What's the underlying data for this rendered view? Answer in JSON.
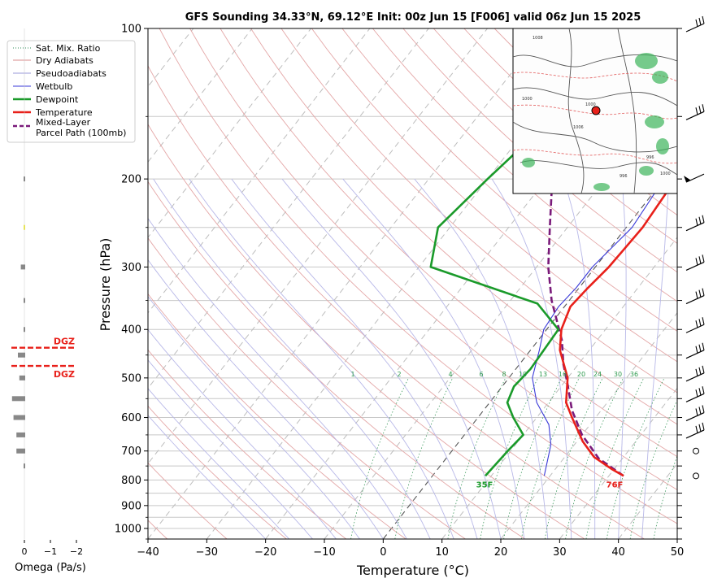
{
  "chart_data": {
    "type": "line",
    "title": "GFS Sounding 34.33°N, 69.12°E Init: 00z Jun 15 [F006] valid 06z Jun 15 2025",
    "xlabel": "Temperature (°C)",
    "ylabel": "Pressure (hPa)",
    "xlim": [
      -40,
      50
    ],
    "ylim": [
      1050,
      100
    ],
    "y_scale": "log",
    "x_ticks": [
      "−40",
      "−30",
      "−20",
      "−10",
      "0",
      "10",
      "20",
      "30",
      "40",
      "50"
    ],
    "y_ticks": [
      "100",
      "200",
      "300",
      "400",
      "500",
      "600",
      "700",
      "800",
      "900",
      "1000"
    ],
    "skew": true,
    "grid": true,
    "legend_position": "outside-left",
    "legend": [
      {
        "label": "Sat. Mix. Ratio",
        "color": "#2e8b57",
        "style": "dotted"
      },
      {
        "label": "Dry Adiabats",
        "color": "#d98c8c",
        "style": "solid"
      },
      {
        "label": "Pseudoadiabats",
        "color": "#9a9ad8",
        "style": "solid"
      },
      {
        "label": "Wetbulb",
        "color": "#3a3ad8",
        "style": "solid"
      },
      {
        "label": "Dewpoint",
        "color": "#1a9a2a",
        "style": "solid-thick"
      },
      {
        "label": "Temperature",
        "color": "#e8201a",
        "style": "solid-thick"
      },
      {
        "label": "Mixed-Layer",
        "label2": "Parcel Path (100mb)",
        "color": "#7a1a7a",
        "style": "dashed-thick"
      }
    ],
    "series": [
      {
        "name": "Temperature",
        "color": "#e8201a",
        "points": [
          [
            32.5,
            785
          ],
          [
            29.5,
            760
          ],
          [
            25,
            720
          ],
          [
            21,
            670
          ],
          [
            16,
            600
          ],
          [
            13,
            560
          ],
          [
            10,
            500
          ],
          [
            5,
            440
          ],
          [
            2.5,
            400
          ],
          [
            1,
            360
          ],
          [
            1.5,
            330
          ],
          [
            2.3,
            300
          ],
          [
            2.8,
            250
          ],
          [
            2,
            200
          ],
          [
            -4.5,
            150
          ],
          [
            -5.5,
            125
          ],
          [
            -5,
            100
          ]
        ]
      },
      {
        "name": "Dewpoint",
        "color": "#1a9a2a",
        "points": [
          [
            9,
            785
          ],
          [
            9.5,
            700
          ],
          [
            10,
            650
          ],
          [
            6,
            600
          ],
          [
            3,
            560
          ],
          [
            2,
            520
          ],
          [
            2.5,
            480
          ],
          [
            2,
            400
          ],
          [
            -5,
            355
          ],
          [
            -28,
            300
          ],
          [
            -32,
            250
          ],
          [
            -30,
            200
          ],
          [
            -27,
            150
          ],
          [
            -21,
            100
          ]
        ]
      },
      {
        "name": "Wetbulb",
        "color": "#3a3ad8",
        "points": [
          [
            19,
            785
          ],
          [
            16,
            680
          ],
          [
            13,
            620
          ],
          [
            8,
            560
          ],
          [
            4,
            500
          ],
          [
            1.5,
            440
          ],
          [
            -0.5,
            400
          ],
          [
            -1,
            360
          ],
          [
            -0.5,
            330
          ],
          [
            -0.5,
            300
          ],
          [
            1,
            250
          ],
          [
            0,
            200
          ],
          [
            -4.5,
            150
          ]
        ]
      },
      {
        "name": "Mixed-Layer Parcel Path (100mb)",
        "color": "#7a1a7a",
        "points": [
          [
            32.5,
            785
          ],
          [
            26,
            725
          ],
          [
            20,
            650
          ],
          [
            15,
            580
          ],
          [
            10.5,
            510
          ],
          [
            7.5,
            470
          ],
          [
            4,
            420
          ],
          [
            -3,
            350
          ],
          [
            -8,
            300
          ],
          [
            -13,
            250
          ],
          [
            -19,
            200
          ],
          [
            -26,
            150
          ],
          [
            -30.5,
            125
          ],
          [
            -34.5,
            100
          ]
        ]
      }
    ],
    "sat_mix_ratio_labels": [
      "1",
      "2",
      "4",
      "6",
      "8",
      "10",
      "13",
      "16",
      "20",
      "24",
      "30",
      "36"
    ],
    "annotations": {
      "surface_temp": "76F",
      "surface_dewpoint": "35F",
      "dgz_label": "DGZ"
    },
    "omega": {
      "xlabel": "Omega (Pa/s)",
      "x_ticks": [
        "0",
        "−1",
        "−2"
      ],
      "bars": [
        {
          "p": 200,
          "w": 0.1,
          "color": "#888888"
        },
        {
          "p": 250,
          "w": 0.05,
          "color": "#e6e35a"
        },
        {
          "p": 300,
          "w": 0.3,
          "color": "#888888"
        },
        {
          "p": 350,
          "w": 0.1,
          "color": "#888888"
        },
        {
          "p": 400,
          "w": 0.1,
          "color": "#888888"
        },
        {
          "p": 450,
          "w": 0.5,
          "color": "#888888"
        },
        {
          "p": 500,
          "w": 0.4,
          "color": "#888888"
        },
        {
          "p": 550,
          "w": 0.9,
          "color": "#888888"
        },
        {
          "p": 600,
          "w": 0.8,
          "color": "#888888"
        },
        {
          "p": 650,
          "w": 0.6,
          "color": "#888888"
        },
        {
          "p": 700,
          "w": 0.6,
          "color": "#888888"
        },
        {
          "p": 750,
          "w": 0.1,
          "color": "#888888"
        }
      ],
      "dgz_pressures": [
        435,
        473
      ]
    },
    "wind_barbs": [
      {
        "p": 100,
        "type": "barb"
      },
      {
        "p": 150,
        "type": "barb"
      },
      {
        "p": 200,
        "type": "pennant"
      },
      {
        "p": 250,
        "type": "barb"
      },
      {
        "p": 300,
        "type": "barb"
      },
      {
        "p": 350,
        "type": "barb"
      },
      {
        "p": 400,
        "type": "barb"
      },
      {
        "p": 450,
        "type": "barb"
      },
      {
        "p": 500,
        "type": "barb"
      },
      {
        "p": 550,
        "type": "barb"
      },
      {
        "p": 600,
        "type": "barb"
      },
      {
        "p": 650,
        "type": "barb"
      },
      {
        "p": 700,
        "type": "calm"
      },
      {
        "p": 785,
        "type": "calm"
      }
    ],
    "inset_map": {
      "marker_color": "#e8201a",
      "contour_labels": [
        "1008",
        "1000",
        "1006",
        "1000",
        "996",
        "996",
        "1000"
      ]
    }
  }
}
